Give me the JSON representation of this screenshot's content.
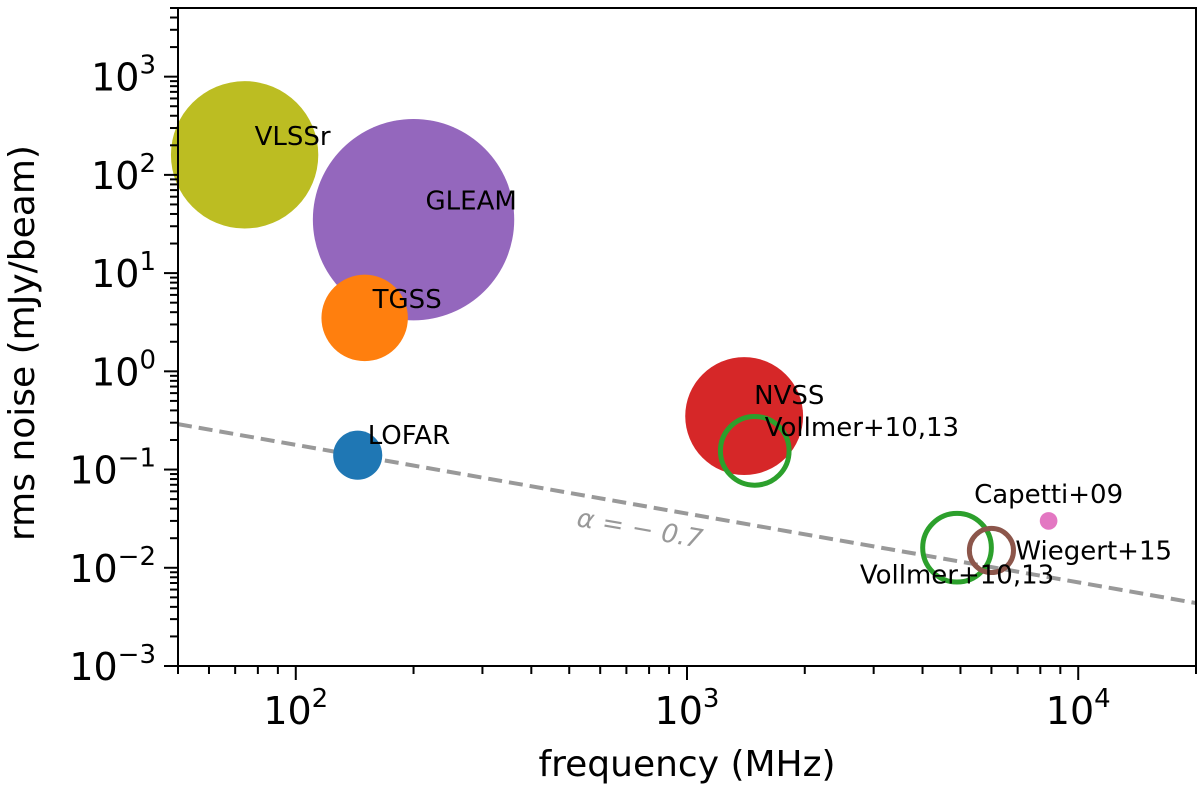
{
  "chart_data": {
    "type": "scatter",
    "xlabel": "frequency (MHz)",
    "ylabel": "rms noise (mJy/beam)",
    "xscale": "log",
    "yscale": "log",
    "xlim": [
      50,
      20000
    ],
    "ylim": [
      0.001,
      5000
    ],
    "grid": false,
    "x_ticks": [
      {
        "value": 100,
        "base": "10",
        "exp": "2"
      },
      {
        "value": 1000,
        "base": "10",
        "exp": "3"
      },
      {
        "value": 10000,
        "base": "10",
        "exp": "4"
      }
    ],
    "y_ticks": [
      {
        "value": 0.001,
        "base": "10",
        "exp": "−3"
      },
      {
        "value": 0.01,
        "base": "10",
        "exp": "−2"
      },
      {
        "value": 0.1,
        "base": "10",
        "exp": "−1"
      },
      {
        "value": 1,
        "base": "10",
        "exp": "0"
      },
      {
        "value": 10,
        "base": "10",
        "exp": "1"
      },
      {
        "value": 100,
        "base": "10",
        "exp": "2"
      },
      {
        "value": 1000,
        "base": "10",
        "exp": "3"
      }
    ],
    "points": [
      {
        "name": "VLSSr",
        "x": 74,
        "y": 160,
        "size": 1.5,
        "color": "#bcbd22",
        "filled": true
      },
      {
        "name": "GLEAM",
        "x": 200,
        "y": 35,
        "size": 2.05,
        "color": "#9467bd",
        "filled": true
      },
      {
        "name": "TGSS",
        "x": 150,
        "y": 3.5,
        "size": 0.88,
        "color": "#ff7f0e",
        "filled": true
      },
      {
        "name": "LOFAR",
        "x": 144,
        "y": 0.14,
        "size": 0.5,
        "color": "#1f77b4",
        "filled": true
      },
      {
        "name": "NVSS",
        "x": 1400,
        "y": 0.35,
        "size": 1.2,
        "color": "#d62728",
        "filled": true
      },
      {
        "name": "Vollmer+10,13",
        "x": 1490,
        "y": 0.155,
        "size": 0.75,
        "color": "#2ca02c",
        "filled": false
      },
      {
        "name": "Vollmer+10,13",
        "x": 4900,
        "y": 0.016,
        "size": 0.75,
        "color": "#2ca02c",
        "filled": false
      },
      {
        "name": "Wiegert+15",
        "x": 6000,
        "y": 0.015,
        "size": 0.5,
        "color": "#8c564b",
        "filled": false
      },
      {
        "name": "Capetti+09",
        "x": 8400,
        "y": 0.03,
        "size": 0.18,
        "color": "#e377c2",
        "filled": true
      }
    ],
    "reference_line": {
      "label": "α = − 0.7",
      "alpha": -0.7,
      "x_range": [
        50,
        20000
      ],
      "y_at_50MHz": 0.29,
      "color": "#999999",
      "style": "dashed"
    }
  }
}
